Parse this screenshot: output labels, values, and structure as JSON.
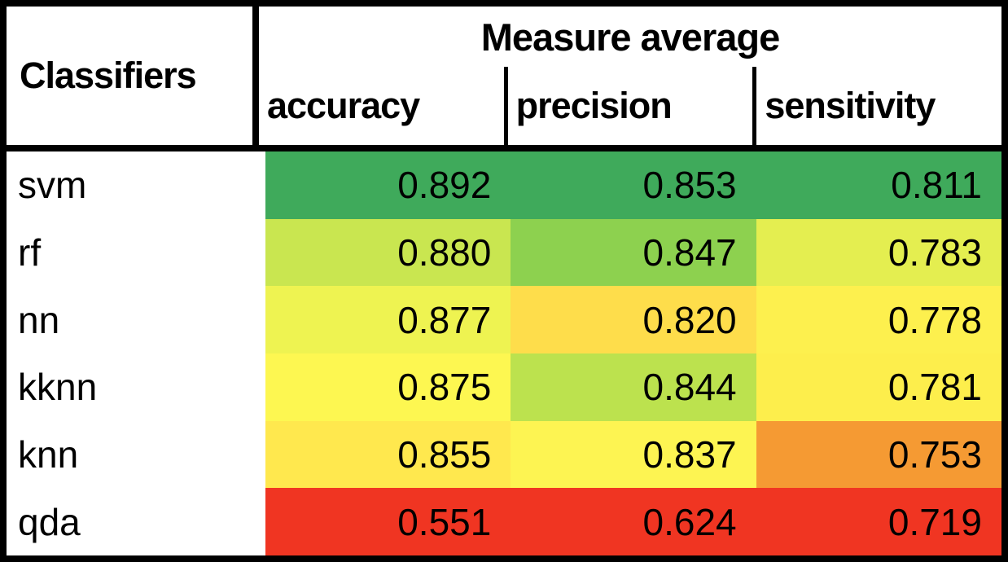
{
  "table": {
    "corner_header": "Classifiers",
    "group_header": "Measure average",
    "columns": [
      "accuracy",
      "precision",
      "sensitivity"
    ],
    "rows": [
      {
        "label": "svm",
        "values": [
          "0.892",
          "0.853",
          "0.811"
        ],
        "colors": [
          "#3faa5b",
          "#3faa5b",
          "#3faa5b"
        ]
      },
      {
        "label": "rf",
        "values": [
          "0.880",
          "0.847",
          "0.783"
        ],
        "colors": [
          "#c9e650",
          "#8dd14f",
          "#e4ee50"
        ]
      },
      {
        "label": "nn",
        "values": [
          "0.877",
          "0.820",
          "0.778"
        ],
        "colors": [
          "#eef351",
          "#fedd4b",
          "#fdf04e"
        ]
      },
      {
        "label": "kknn",
        "values": [
          "0.875",
          "0.844",
          "0.781"
        ],
        "colors": [
          "#fdf751",
          "#bce24e",
          "#fdee4c"
        ]
      },
      {
        "label": "knn",
        "values": [
          "0.855",
          "0.837",
          "0.753"
        ],
        "colors": [
          "#ffe84e",
          "#fdf452",
          "#f59a33"
        ]
      },
      {
        "label": "qda",
        "values": [
          "0.551",
          "0.624",
          "0.719"
        ],
        "colors": [
          "#f03522",
          "#f03522",
          "#f03522"
        ]
      }
    ]
  },
  "colors": {
    "best_green": "#3faa5b",
    "worst_red": "#f03522",
    "orange": "#f59a33",
    "border_black": "#000000",
    "background_white": "#ffffff"
  },
  "chart_data": {
    "type": "heatmap",
    "title": "Measure average",
    "row_label_header": "Classifiers",
    "rows": [
      "svm",
      "rf",
      "nn",
      "kknn",
      "knn",
      "qda"
    ],
    "columns": [
      "accuracy",
      "precision",
      "sensitivity"
    ],
    "values": [
      [
        0.892,
        0.853,
        0.811
      ],
      [
        0.88,
        0.847,
        0.783
      ],
      [
        0.877,
        0.82,
        0.778
      ],
      [
        0.875,
        0.844,
        0.781
      ],
      [
        0.855,
        0.837,
        0.753
      ],
      [
        0.551,
        0.624,
        0.719
      ]
    ],
    "cell_colors": [
      [
        "#3faa5b",
        "#3faa5b",
        "#3faa5b"
      ],
      [
        "#c9e650",
        "#8dd14f",
        "#e4ee50"
      ],
      [
        "#eef351",
        "#fedd4b",
        "#fdf04e"
      ],
      [
        "#fdf751",
        "#bce24e",
        "#fdee4c"
      ],
      [
        "#ffe84e",
        "#fdf452",
        "#f59a33"
      ],
      [
        "#f03522",
        "#f03522",
        "#f03522"
      ]
    ],
    "color_scale": "red-yellow-green, applied per column (max=green, median=yellow, min=red)",
    "legend_position": "none",
    "grid": false
  }
}
